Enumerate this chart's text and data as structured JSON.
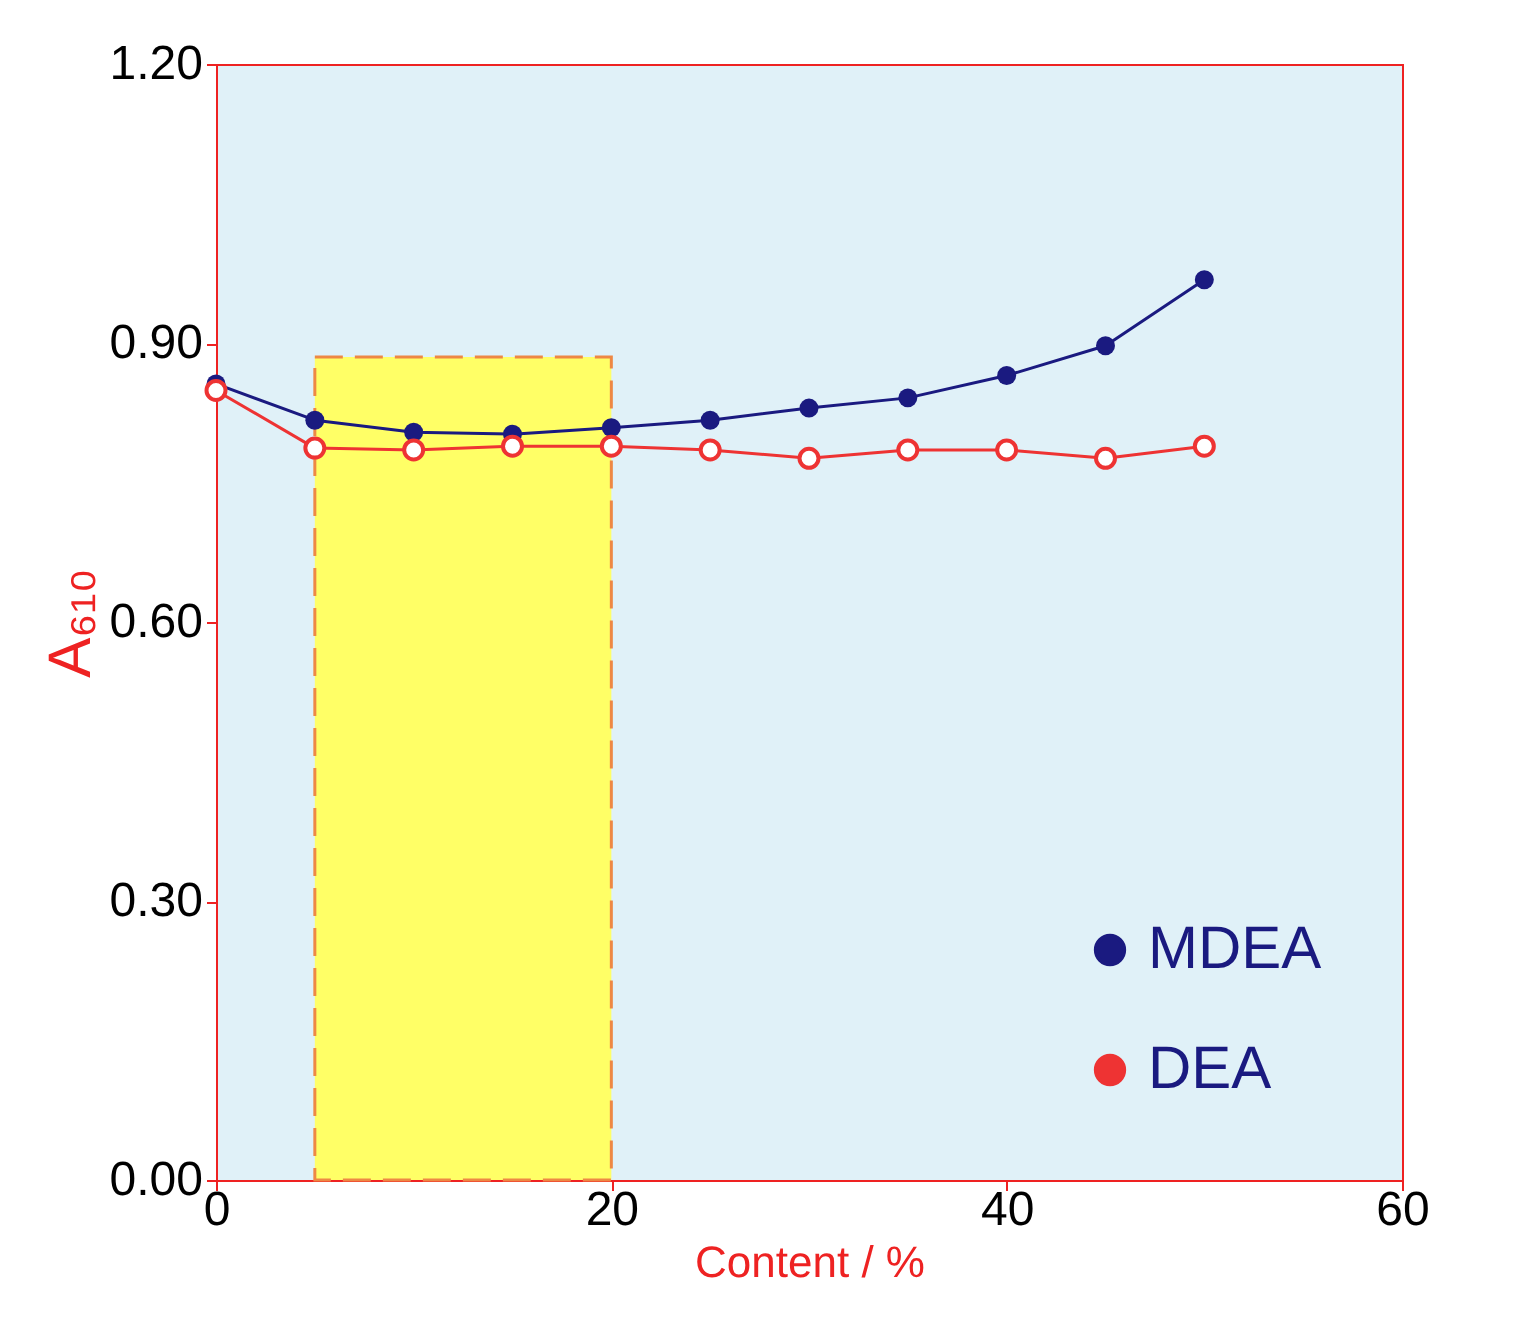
{
  "chart_data": {
    "type": "line",
    "xlabel": "Content / %",
    "ylabel": "A₆₁₀",
    "xlim": [
      0,
      60
    ],
    "xticks": [
      0,
      20,
      40,
      60
    ],
    "ylim": [
      0,
      1.2
    ],
    "yticks": [
      {
        "value": 0,
        "label": "0.00"
      },
      {
        "value": 0.3,
        "label": "0.30"
      },
      {
        "value": 0.6,
        "label": "0.60"
      },
      {
        "value": 0.9,
        "label": "0.90"
      },
      {
        "value": 1.2,
        "label": "1.20"
      }
    ],
    "x": [
      0,
      5,
      10,
      15,
      20,
      25,
      30,
      35,
      40,
      45,
      50
    ],
    "marker": "circle",
    "grid": false,
    "legend": "bottom right",
    "series": [
      {
        "type": "area",
        "x": [
          5,
          20
        ],
        "values": [
          0.885,
          0.885
        ],
        "color": "#ffff66",
        "line_style": "dashed",
        "marker": "none"
      },
      {
        "name": "MDEA",
        "color": "#1a1a80",
        "values": [
          0.856,
          0.817,
          0.804,
          0.802,
          0.809,
          0.817,
          0.83,
          0.841,
          0.865,
          0.897,
          0.968
        ]
      },
      {
        "name": "DEA",
        "color": "#ee3333",
        "values": [
          0.849,
          0.787,
          0.785,
          0.789,
          0.789,
          0.785,
          0.776,
          0.785,
          0.785,
          0.776,
          0.789
        ]
      }
    ]
  }
}
